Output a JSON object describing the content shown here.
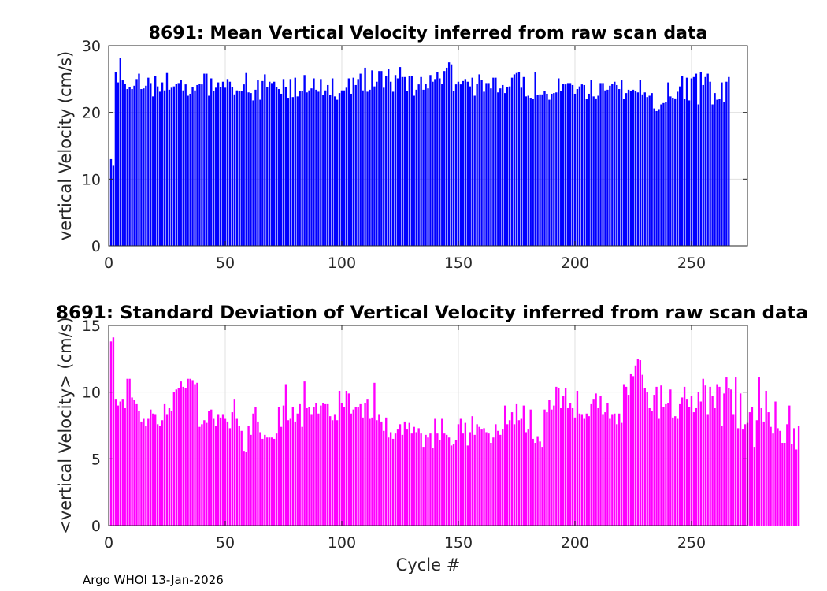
{
  "footer": "Argo WHOI 13-Jan-2026",
  "colors": {
    "top": "#0000ff",
    "bottom": "#ff00ff"
  },
  "chart_data": [
    {
      "type": "bar",
      "title": "8691: Mean Vertical Velocity inferred from raw scan data",
      "xlabel": "",
      "ylabel": "vertical Velocity (cm/s)",
      "xlim": [
        0,
        274
      ],
      "ylim": [
        0,
        30
      ],
      "xticks": [
        0,
        50,
        100,
        150,
        200,
        250
      ],
      "yticks": [
        0,
        10,
        20,
        30
      ],
      "grid": true,
      "x_start": 1,
      "values": [
        13.0,
        12.0,
        26.0,
        24.5,
        28.2,
        24.8,
        24.3,
        23.5,
        23.8,
        23.5,
        24.0,
        25.0,
        25.8,
        23.5,
        23.6,
        24.0,
        25.2,
        24.4,
        22.4,
        25.5,
        23.9,
        23.1,
        24.5,
        23.3,
        25.9,
        23.4,
        23.7,
        23.9,
        24.3,
        24.4,
        24.9,
        23.3,
        24.2,
        22.5,
        22.8,
        23.8,
        23.3,
        24.1,
        24.3,
        24.2,
        25.8,
        25.8,
        22.5,
        25.1,
        23.2,
        23.7,
        24.5,
        23.8,
        24.6,
        23.7,
        25.0,
        24.6,
        23.8,
        22.7,
        23.3,
        23.2,
        23.2,
        24.2,
        25.9,
        23.0,
        22.9,
        21.8,
        23.4,
        24.8,
        21.9,
        24.7,
        25.7,
        23.8,
        24.6,
        24.4,
        24.6,
        23.8,
        23.5,
        22.8,
        25.0,
        23.8,
        22.2,
        25.0,
        22.3,
        25.2,
        22.4,
        23.2,
        23.2,
        25.6,
        23.0,
        23.3,
        23.6,
        25.1,
        23.4,
        23.1,
        25.0,
        22.6,
        23.3,
        24.1,
        22.6,
        25.1,
        22.4,
        21.9,
        22.9,
        23.3,
        23.3,
        23.7,
        25.1,
        22.8,
        25.2,
        24.1,
        25.0,
        25.8,
        23.3,
        26.7,
        23.1,
        23.4,
        26.3,
        23.9,
        24.6,
        26.2,
        26.2,
        23.7,
        25.4,
        26.5,
        24.6,
        23.1,
        25.6,
        25.1,
        26.8,
        25.3,
        25.3,
        23.2,
        25.4,
        25.5,
        22.5,
        23.4,
        24.2,
        25.3,
        23.4,
        24.3,
        23.6,
        25.6,
        24.6,
        25.0,
        26.0,
        25.1,
        24.3,
        26.2,
        26.7,
        27.5,
        27.2,
        23.2,
        24.2,
        24.6,
        24.2,
        24.7,
        25.0,
        24.6,
        23.9,
        25.2,
        22.5,
        24.3,
        25.7,
        24.9,
        23.1,
        24.4,
        24.4,
        23.6,
        25.2,
        25.2,
        23.0,
        23.6,
        24.1,
        22.9,
        23.8,
        23.9,
        25.2,
        25.7,
        25.9,
        26.0,
        23.7,
        25.3,
        22.4,
        22.5,
        22.2,
        22.0,
        26.1,
        22.6,
        22.7,
        22.7,
        23.2,
        22.8,
        21.9,
        22.8,
        22.9,
        23.0,
        25.1,
        23.2,
        24.3,
        24.2,
        24.4,
        24.4,
        24.1,
        22.8,
        23.5,
        23.9,
        24.2,
        24.1,
        22.0,
        22.8,
        24.9,
        22.4,
        22.1,
        22.5,
        24.4,
        24.4,
        23.3,
        23.4,
        24.0,
        24.3,
        24.6,
        24.1,
        23.5,
        24.8,
        22.0,
        22.9,
        23.4,
        23.2,
        23.4,
        23.2,
        23.0,
        24.9,
        22.7,
        23.0,
        22.3,
        22.5,
        22.9,
        20.6,
        20.2,
        20.5,
        21.2,
        21.4,
        21.5,
        24.5,
        22.4,
        22.2,
        22.1,
        23.1,
        23.9,
        25.5,
        22.0,
        25.2,
        21.8,
        25.1,
        25.3,
        25.8,
        21.2,
        26.1,
        24.1,
        25.3,
        25.8,
        24.6,
        21.2,
        22.9,
        21.9,
        22.0,
        24.5,
        21.6,
        24.6,
        25.3
      ]
    },
    {
      "type": "bar",
      "title": "8691: Standard Deviation of Vertical Velocity inferred from raw scan data",
      "xlabel": "Cycle #",
      "ylabel": "<vertical Velocity> (cm/s)",
      "xlim": [
        0,
        274
      ],
      "ylim": [
        0,
        15
      ],
      "xticks": [
        0,
        50,
        100,
        150,
        200,
        250
      ],
      "yticks": [
        0,
        5,
        10,
        15
      ],
      "grid": true,
      "x_start": 1,
      "values": [
        13.8,
        14.1,
        9.5,
        9.0,
        9.3,
        9.5,
        8.8,
        11.0,
        11.0,
        9.6,
        9.4,
        9.1,
        8.6,
        7.8,
        8.0,
        7.5,
        8.0,
        8.7,
        8.4,
        8.3,
        7.6,
        7.5,
        7.9,
        9.1,
        8.3,
        8.8,
        8.6,
        10.0,
        10.2,
        10.3,
        10.8,
        10.4,
        10.3,
        11.0,
        11.0,
        10.9,
        10.6,
        10.7,
        7.4,
        7.6,
        7.9,
        7.7,
        8.6,
        8.7,
        8.0,
        7.5,
        8.3,
        8.1,
        8.3,
        8.0,
        7.8,
        7.3,
        8.5,
        9.5,
        8.0,
        7.5,
        7.1,
        5.6,
        5.5,
        7.5,
        6.8,
        8.4,
        8.9,
        7.8,
        7.0,
        6.5,
        6.8,
        6.6,
        6.6,
        6.6,
        6.5,
        6.9,
        8.9,
        7.4,
        9.0,
        10.6,
        7.9,
        8.0,
        8.9,
        7.8,
        8.4,
        9.1,
        7.4,
        10.8,
        8.8,
        8.9,
        8.3,
        8.9,
        9.2,
        8.4,
        9.0,
        9.2,
        9.1,
        9.1,
        8.2,
        7.9,
        8.3,
        7.9,
        10.1,
        9.2,
        8.9,
        10.1,
        9.9,
        8.4,
        8.7,
        8.9,
        8.9,
        9.1,
        8.1,
        9.2,
        9.5,
        8.0,
        8.1,
        10.7,
        7.9,
        8.3,
        7.8,
        7.1,
        8.1,
        6.6,
        7.0,
        6.5,
        6.9,
        7.2,
        7.6,
        6.8,
        7.8,
        7.2,
        7.7,
        6.9,
        7.4,
        7.0,
        7.3,
        6.9,
        5.9,
        6.8,
        6.6,
        6.9,
        5.8,
        8.0,
        6.9,
        6.4,
        8.0,
        6.9,
        6.8,
        6.6,
        6.0,
        6.1,
        6.4,
        7.6,
        8.0,
        6.9,
        7.7,
        6.0,
        7.0,
        8.2,
        6.8,
        7.6,
        7.4,
        7.2,
        7.3,
        7.0,
        6.9,
        6.2,
        6.6,
        7.6,
        7.1,
        6.8,
        7.2,
        9.0,
        7.6,
        7.9,
        8.5,
        7.6,
        9.1,
        7.9,
        8.0,
        9.0,
        7.0,
        7.2,
        8.7,
        6.5,
        6.2,
        6.7,
        6.3,
        5.9,
        8.7,
        8.5,
        9.4,
        8.7,
        9.0,
        10.4,
        10.3,
        8.8,
        9.7,
        10.3,
        8.8,
        9.2,
        8.8,
        8.1,
        10.1,
        8.4,
        8.3,
        8.0,
        8.4,
        8.2,
        9.1,
        9.5,
        9.9,
        8.8,
        9.7,
        8.3,
        8.5,
        9.2,
        8.0,
        8.3,
        8.4,
        7.6,
        8.4,
        7.7,
        10.6,
        10.4,
        9.8,
        11.4,
        11.2,
        12.0,
        12.5,
        12.4,
        11.3,
        10.3,
        10.0,
        8.8,
        8.6,
        9.8,
        10.4,
        8.0,
        10.5,
        8.9,
        9.1,
        9.2,
        10.2,
        8.1,
        8.2,
        8.0,
        9.1,
        9.6,
        10.4,
        9.5,
        8.9,
        9.7,
        8.5,
        8.8,
        10.0,
        9.3,
        11.0,
        10.5,
        8.3,
        10.4,
        9.7,
        8.8,
        10.6,
        10.4,
        7.5,
        9.9,
        11.1,
        10.3,
        10.2,
        8.3,
        11.1,
        7.3,
        9.9,
        7.2,
        7.6,
        7.7,
        8.5,
        8.9,
        5.9,
        7.9,
        11.1,
        8.8,
        7.8,
        10.1,
        8.5,
        7.4,
        6.9,
        9.3,
        7.3,
        7.1,
        6.2,
        6.2,
        7.6,
        9.0,
        6.1,
        7.3,
        5.7,
        7.5
      ]
    }
  ]
}
